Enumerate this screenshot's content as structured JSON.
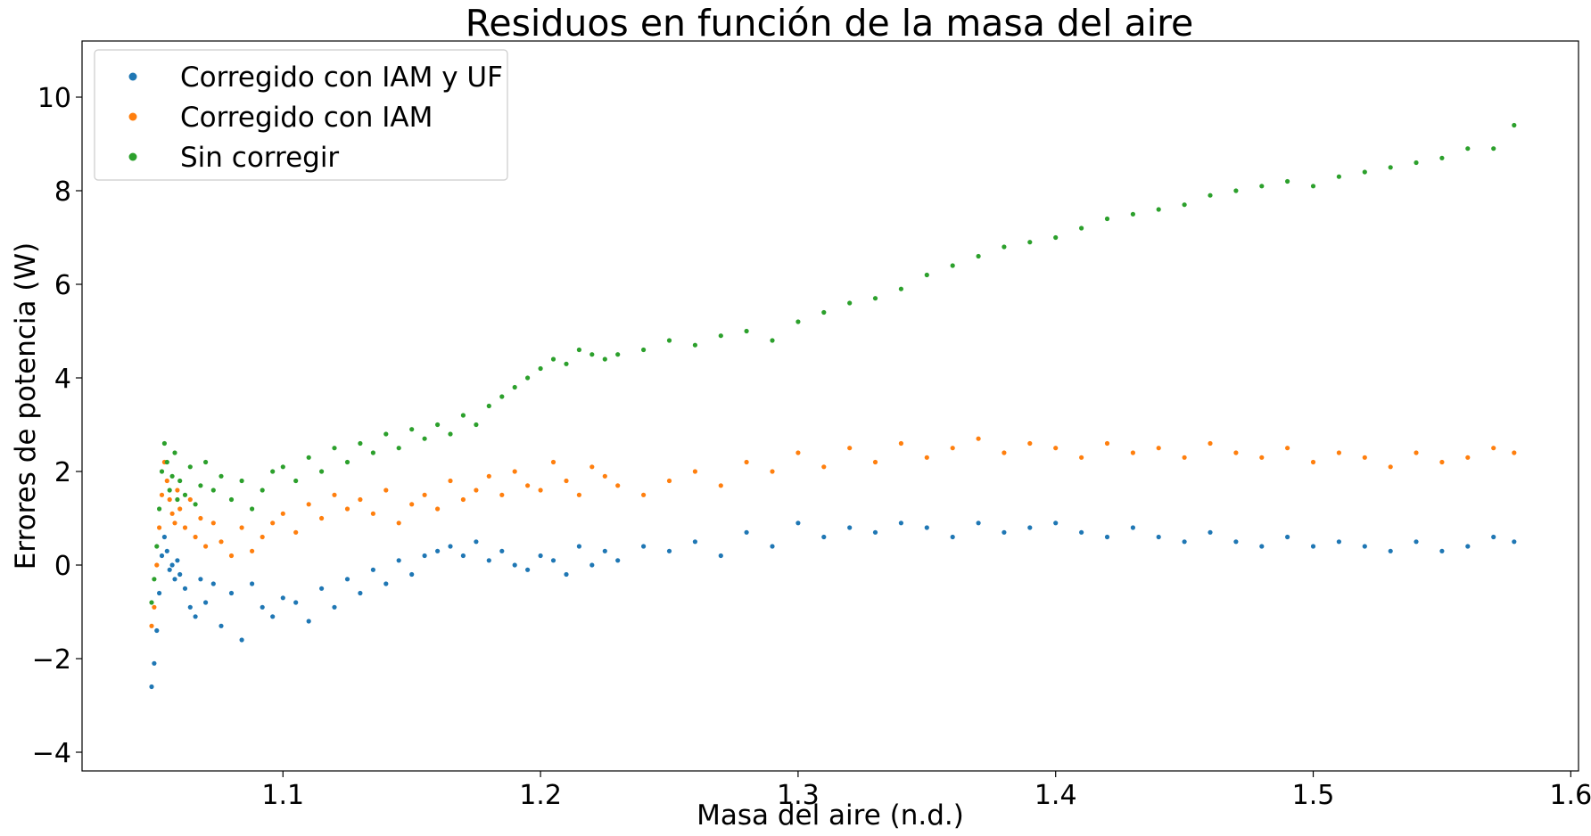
{
  "chart_data": {
    "type": "scatter",
    "title": "Residuos en función de la masa del aire",
    "xlabel": "Masa del aire (n.d.)",
    "ylabel": "Errores de potencia (W)",
    "xlim": [
      1.022,
      1.603
    ],
    "ylim": [
      -4.4,
      11.2
    ],
    "xticks": [
      1.1,
      1.2,
      1.3,
      1.4,
      1.5,
      1.6
    ],
    "xtick_labels": [
      "1.1",
      "1.2",
      "1.3",
      "1.4",
      "1.5",
      "1.6"
    ],
    "yticks": [
      -4,
      -2,
      0,
      2,
      4,
      6,
      8,
      10
    ],
    "ytick_labels": [
      "−4",
      "−2",
      "0",
      "2",
      "4",
      "6",
      "8",
      "10"
    ],
    "grid": false,
    "legend_position": "top-left",
    "series": [
      {
        "name": "Corregido con IAM y UF",
        "color": "#1f77b4",
        "x": [
          1.049,
          1.05,
          1.051,
          1.052,
          1.053,
          1.054,
          1.055,
          1.056,
          1.057,
          1.058,
          1.059,
          1.06,
          1.062,
          1.064,
          1.066,
          1.068,
          1.07,
          1.073,
          1.076,
          1.08,
          1.084,
          1.088,
          1.092,
          1.096,
          1.1,
          1.105,
          1.11,
          1.115,
          1.12,
          1.125,
          1.13,
          1.135,
          1.14,
          1.145,
          1.15,
          1.155,
          1.16,
          1.165,
          1.17,
          1.175,
          1.18,
          1.185,
          1.19,
          1.195,
          1.2,
          1.205,
          1.21,
          1.215,
          1.22,
          1.225,
          1.23,
          1.24,
          1.25,
          1.26,
          1.27,
          1.28,
          1.29,
          1.3,
          1.31,
          1.32,
          1.33,
          1.34,
          1.35,
          1.36,
          1.37,
          1.38,
          1.39,
          1.4,
          1.41,
          1.42,
          1.43,
          1.44,
          1.45,
          1.46,
          1.47,
          1.48,
          1.49,
          1.5,
          1.51,
          1.52,
          1.53,
          1.54,
          1.55,
          1.56,
          1.57,
          1.578
        ],
        "y": [
          -2.6,
          -2.1,
          -1.4,
          -0.6,
          0.2,
          0.6,
          0.3,
          -0.1,
          0.0,
          -0.3,
          0.1,
          -0.2,
          -0.5,
          -0.9,
          -1.1,
          -0.3,
          -0.8,
          -0.4,
          -1.3,
          -0.6,
          -1.6,
          -0.4,
          -0.9,
          -1.1,
          -0.7,
          -0.8,
          -1.2,
          -0.5,
          -0.9,
          -0.3,
          -0.6,
          -0.1,
          -0.4,
          0.1,
          -0.2,
          0.2,
          0.3,
          0.4,
          0.2,
          0.5,
          0.1,
          0.3,
          0.0,
          -0.1,
          0.2,
          0.1,
          -0.2,
          0.4,
          0.0,
          0.3,
          0.1,
          0.4,
          0.3,
          0.5,
          0.2,
          0.7,
          0.4,
          0.9,
          0.6,
          0.8,
          0.7,
          0.9,
          0.8,
          0.6,
          0.9,
          0.7,
          0.8,
          0.9,
          0.7,
          0.6,
          0.8,
          0.6,
          0.5,
          0.7,
          0.5,
          0.4,
          0.6,
          0.4,
          0.5,
          0.4,
          0.3,
          0.5,
          0.3,
          0.4,
          0.6,
          0.5
        ]
      },
      {
        "name": "Corregido con IAM",
        "color": "#ff7f0e",
        "x": [
          1.049,
          1.05,
          1.051,
          1.052,
          1.053,
          1.054,
          1.055,
          1.056,
          1.057,
          1.058,
          1.059,
          1.06,
          1.062,
          1.064,
          1.066,
          1.068,
          1.07,
          1.073,
          1.076,
          1.08,
          1.084,
          1.088,
          1.092,
          1.096,
          1.1,
          1.105,
          1.11,
          1.115,
          1.12,
          1.125,
          1.13,
          1.135,
          1.14,
          1.145,
          1.15,
          1.155,
          1.16,
          1.165,
          1.17,
          1.175,
          1.18,
          1.185,
          1.19,
          1.195,
          1.2,
          1.205,
          1.21,
          1.215,
          1.22,
          1.225,
          1.23,
          1.24,
          1.25,
          1.26,
          1.27,
          1.28,
          1.29,
          1.3,
          1.31,
          1.32,
          1.33,
          1.34,
          1.35,
          1.36,
          1.37,
          1.38,
          1.39,
          1.4,
          1.41,
          1.42,
          1.43,
          1.44,
          1.45,
          1.46,
          1.47,
          1.48,
          1.49,
          1.5,
          1.51,
          1.52,
          1.53,
          1.54,
          1.55,
          1.56,
          1.57,
          1.578
        ],
        "y": [
          -1.3,
          -0.9,
          0.0,
          0.8,
          1.5,
          2.2,
          1.8,
          1.4,
          1.1,
          0.9,
          1.6,
          1.2,
          0.8,
          1.4,
          0.6,
          1.0,
          0.4,
          0.9,
          0.5,
          0.2,
          0.8,
          0.3,
          0.6,
          0.9,
          1.1,
          0.7,
          1.3,
          1.0,
          1.5,
          1.2,
          1.4,
          1.1,
          1.6,
          0.9,
          1.3,
          1.5,
          1.2,
          1.8,
          1.4,
          1.6,
          1.9,
          1.5,
          2.0,
          1.7,
          1.6,
          2.2,
          1.8,
          1.5,
          2.1,
          1.9,
          1.7,
          1.5,
          1.8,
          2.0,
          1.7,
          2.2,
          2.0,
          2.4,
          2.1,
          2.5,
          2.2,
          2.6,
          2.3,
          2.5,
          2.7,
          2.4,
          2.6,
          2.5,
          2.3,
          2.6,
          2.4,
          2.5,
          2.3,
          2.6,
          2.4,
          2.3,
          2.5,
          2.2,
          2.4,
          2.3,
          2.1,
          2.4,
          2.2,
          2.3,
          2.5,
          2.4
        ]
      },
      {
        "name": "Sin corregir",
        "color": "#2ca02c",
        "x": [
          1.049,
          1.05,
          1.051,
          1.052,
          1.053,
          1.054,
          1.055,
          1.056,
          1.057,
          1.058,
          1.059,
          1.06,
          1.062,
          1.064,
          1.066,
          1.068,
          1.07,
          1.073,
          1.076,
          1.08,
          1.084,
          1.088,
          1.092,
          1.096,
          1.1,
          1.105,
          1.11,
          1.115,
          1.12,
          1.125,
          1.13,
          1.135,
          1.14,
          1.145,
          1.15,
          1.155,
          1.16,
          1.165,
          1.17,
          1.175,
          1.18,
          1.185,
          1.19,
          1.195,
          1.2,
          1.205,
          1.21,
          1.215,
          1.22,
          1.225,
          1.23,
          1.24,
          1.25,
          1.26,
          1.27,
          1.28,
          1.29,
          1.3,
          1.31,
          1.32,
          1.33,
          1.34,
          1.35,
          1.36,
          1.37,
          1.38,
          1.39,
          1.4,
          1.41,
          1.42,
          1.43,
          1.44,
          1.45,
          1.46,
          1.47,
          1.48,
          1.49,
          1.5,
          1.51,
          1.52,
          1.53,
          1.54,
          1.55,
          1.56,
          1.57,
          1.578
        ],
        "y": [
          -0.8,
          -0.3,
          0.4,
          1.2,
          2.0,
          2.6,
          2.2,
          1.6,
          1.9,
          2.4,
          1.4,
          1.8,
          1.5,
          2.1,
          1.3,
          1.7,
          2.2,
          1.6,
          1.9,
          1.4,
          1.8,
          1.2,
          1.6,
          2.0,
          2.1,
          1.8,
          2.3,
          2.0,
          2.5,
          2.2,
          2.6,
          2.4,
          2.8,
          2.5,
          2.9,
          2.7,
          3.0,
          2.8,
          3.2,
          3.0,
          3.4,
          3.6,
          3.8,
          4.0,
          4.2,
          4.4,
          4.3,
          4.6,
          4.5,
          4.4,
          4.5,
          4.6,
          4.8,
          4.7,
          4.9,
          5.0,
          4.8,
          5.2,
          5.4,
          5.6,
          5.7,
          5.9,
          6.2,
          6.4,
          6.6,
          6.8,
          6.9,
          7.0,
          7.2,
          7.4,
          7.5,
          7.6,
          7.7,
          7.9,
          8.0,
          8.1,
          8.2,
          8.1,
          8.3,
          8.4,
          8.5,
          8.6,
          8.7,
          8.9,
          8.9,
          9.4
        ]
      }
    ]
  }
}
